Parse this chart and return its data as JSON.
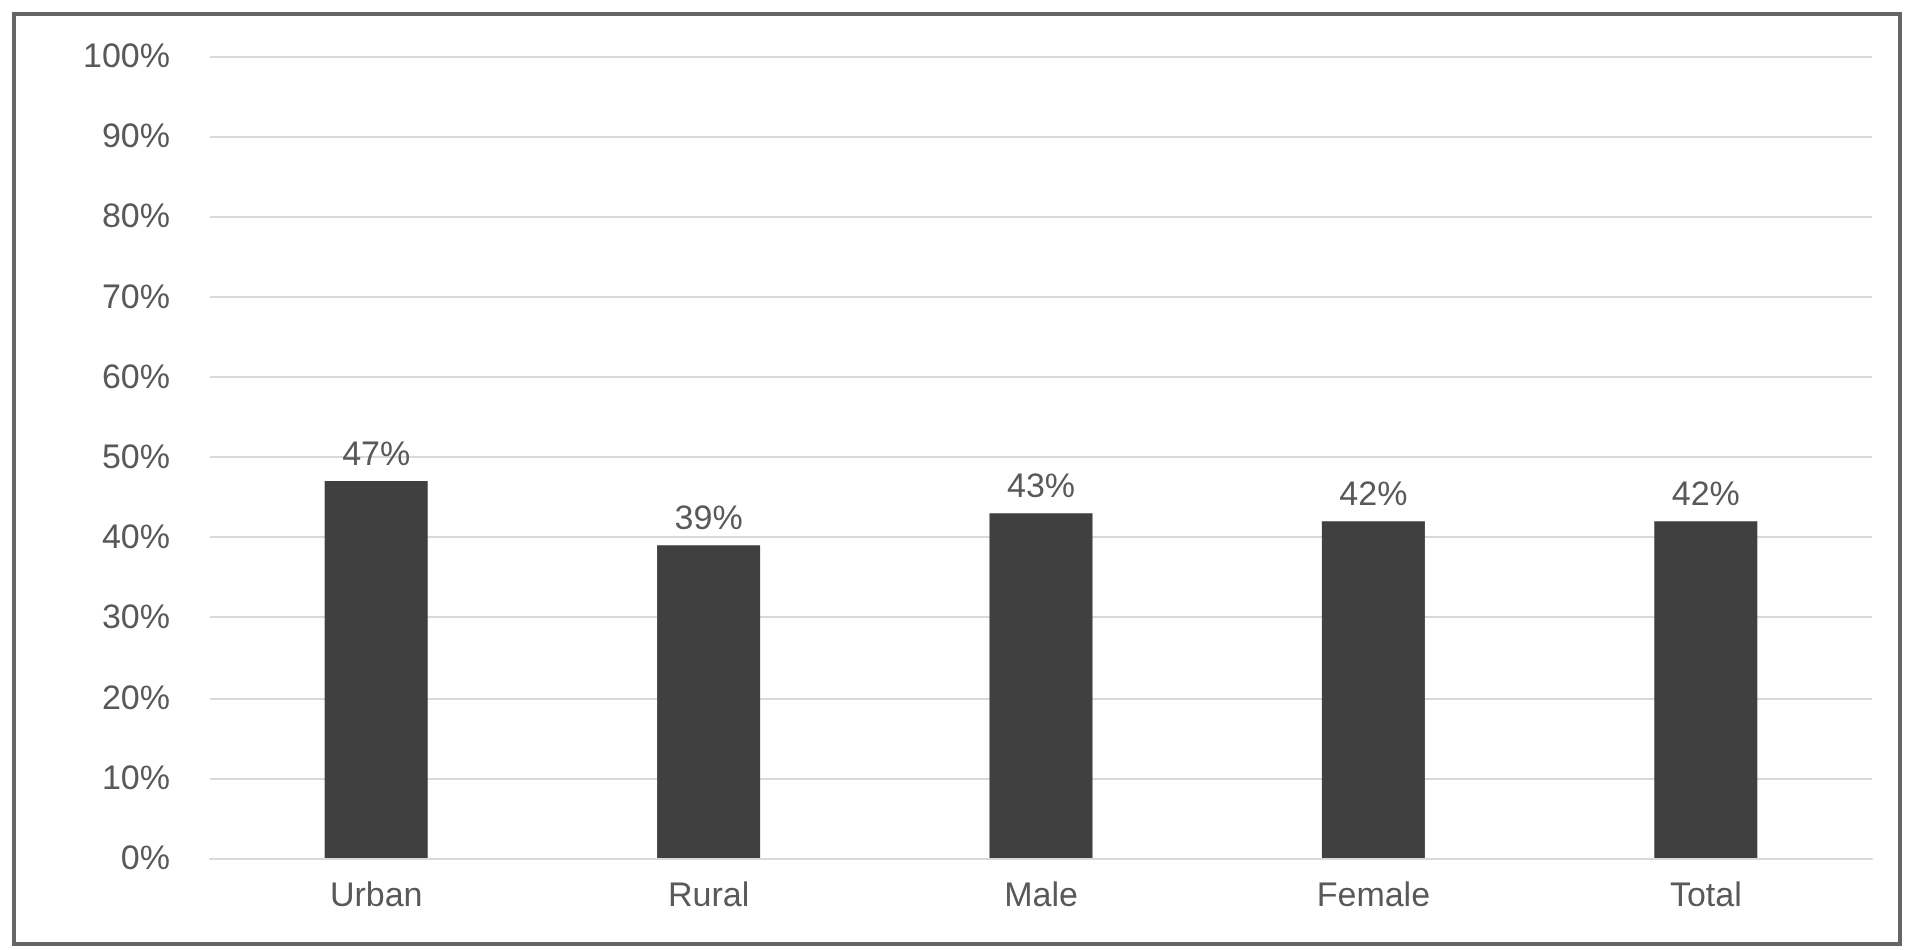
{
  "chart_data": {
    "type": "bar",
    "categories": [
      "Urban",
      "Rural",
      "Male",
      "Female",
      "Total"
    ],
    "values": [
      47,
      39,
      43,
      42,
      42
    ],
    "color": "#404040",
    "value_labels": [
      "47%",
      "39%",
      "43%",
      "42%",
      "42%"
    ],
    "ylim": [
      0,
      100
    ],
    "yticks": [
      {
        "value": 0,
        "label": "0%"
      },
      {
        "value": 10,
        "label": "10%"
      },
      {
        "value": 20,
        "label": "20%"
      },
      {
        "value": 30,
        "label": "30%"
      },
      {
        "value": 40,
        "label": "40%"
      },
      {
        "value": 50,
        "label": "50%"
      },
      {
        "value": 60,
        "label": "60%"
      },
      {
        "value": 70,
        "label": "70%"
      },
      {
        "value": 80,
        "label": "80%"
      },
      {
        "value": 90,
        "label": "90%"
      },
      {
        "value": 100,
        "label": "100%"
      }
    ],
    "grid": "y"
  }
}
